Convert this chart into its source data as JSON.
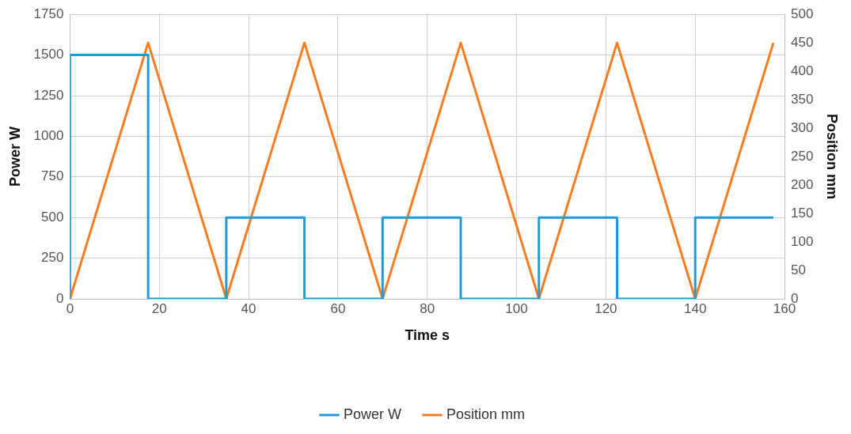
{
  "chart_data": {
    "type": "line",
    "xlabel": "Time s",
    "ylabel": "Power W",
    "y2label": "Position mm",
    "xlim": [
      0,
      160
    ],
    "xticks": [
      0,
      20,
      40,
      60,
      80,
      100,
      120,
      140,
      160
    ],
    "ylim": [
      0,
      1750
    ],
    "yticks": [
      0,
      250,
      500,
      750,
      1000,
      1250,
      1500,
      1750
    ],
    "y2lim": [
      0,
      500
    ],
    "y2ticks": [
      0,
      50,
      100,
      150,
      200,
      250,
      300,
      350,
      400,
      450,
      500
    ],
    "grid": true,
    "legend": "bottom",
    "marker": "none",
    "line_style": "solid",
    "series": [
      {
        "name": "Power W",
        "type": "step",
        "color": "#1f9bd7",
        "x": [
          0,
          0,
          17.5,
          35,
          52.5,
          70,
          87.5,
          105,
          122.5,
          140,
          157.5
        ],
        "values": [
          0,
          1500,
          0,
          500,
          0,
          500,
          0,
          500,
          0,
          500,
          500
        ]
      },
      {
        "name": "Position mm",
        "type": "line",
        "axis": "y2",
        "color": "#f57c20",
        "x": [
          0,
          17.5,
          35,
          52.5,
          70,
          87.5,
          105,
          122.5,
          140,
          157.5
        ],
        "values": [
          0,
          450,
          0,
          450,
          0,
          450,
          0,
          450,
          0,
          450
        ]
      }
    ]
  }
}
